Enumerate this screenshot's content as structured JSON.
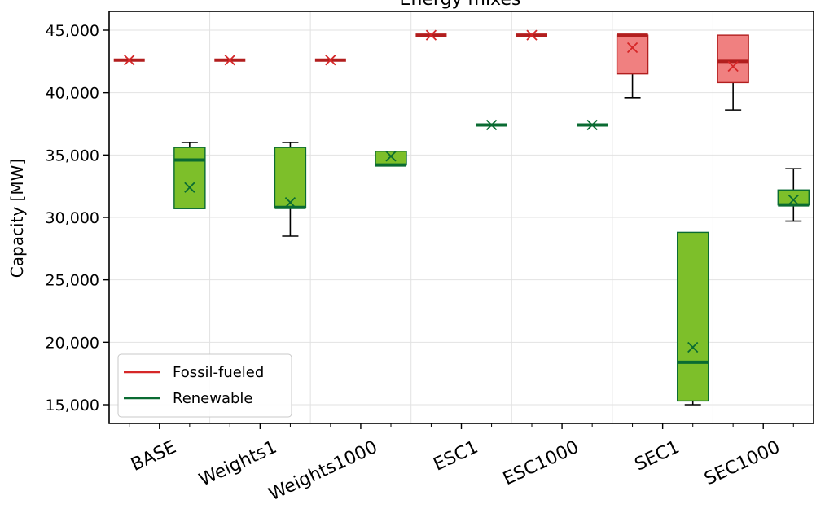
{
  "chart_data": {
    "type": "box",
    "title": "Energy mixes",
    "xlabel": "",
    "ylabel": "Capacity [MW]",
    "ylim": [
      13500,
      46500
    ],
    "yticks": [
      15000,
      20000,
      25000,
      30000,
      35000,
      40000,
      45000
    ],
    "ytick_labels": [
      "15,000",
      "20,000",
      "25,000",
      "30,000",
      "35,000",
      "40,000",
      "45,000"
    ],
    "categories": [
      "BASE",
      "Weights1",
      "Weights1000",
      "ESC1",
      "ESC1000",
      "SEC1",
      "SEC1000"
    ],
    "grid": true,
    "legend": {
      "position": "bottom-left",
      "entries": [
        {
          "label": "Fossil-fueled",
          "color": "#d62728"
        },
        {
          "label": "Renewable",
          "color": "#0a6b32"
        }
      ]
    },
    "series": [
      {
        "name": "Fossil-fueled",
        "box_fill": "#f08080",
        "median_color": "#b21e1e",
        "mean_color": "#d62728",
        "boxes": [
          {
            "whisker_low": 42600,
            "q1": 42600,
            "median": 42600,
            "q3": 42600,
            "whisker_high": 42600,
            "mean": 42600
          },
          {
            "whisker_low": 42600,
            "q1": 42600,
            "median": 42600,
            "q3": 42600,
            "whisker_high": 42600,
            "mean": 42600
          },
          {
            "whisker_low": 42600,
            "q1": 42600,
            "median": 42600,
            "q3": 42600,
            "whisker_high": 42600,
            "mean": 42600
          },
          {
            "whisker_low": 44600,
            "q1": 44600,
            "median": 44600,
            "q3": 44600,
            "whisker_high": 44600,
            "mean": 44600
          },
          {
            "whisker_low": 44600,
            "q1": 44600,
            "median": 44600,
            "q3": 44600,
            "whisker_high": 44600,
            "mean": 44600
          },
          {
            "whisker_low": 39600,
            "q1": 41500,
            "median": 44600,
            "q3": 44600,
            "whisker_high": 44600,
            "mean": 43600
          },
          {
            "whisker_low": 38600,
            "q1": 40800,
            "median": 42500,
            "q3": 44600,
            "whisker_high": 44600,
            "mean": 42100
          }
        ]
      },
      {
        "name": "Renewable",
        "box_fill": "#7dbf2a",
        "median_color": "#0a6b32",
        "mean_color": "#0a6b32",
        "boxes": [
          {
            "whisker_low": 30700,
            "q1": 30700,
            "median": 34600,
            "q3": 35600,
            "whisker_high": 36000,
            "mean": 32400
          },
          {
            "whisker_low": 28500,
            "q1": 30800,
            "median": 30800,
            "q3": 35600,
            "whisker_high": 36000,
            "mean": 31200
          },
          {
            "whisker_low": 34200,
            "q1": 34200,
            "median": 34200,
            "q3": 35300,
            "whisker_high": 35300,
            "mean": 34900
          },
          {
            "whisker_low": 37400,
            "q1": 37400,
            "median": 37400,
            "q3": 37400,
            "whisker_high": 37400,
            "mean": 37400
          },
          {
            "whisker_low": 37400,
            "q1": 37400,
            "median": 37400,
            "q3": 37400,
            "whisker_high": 37400,
            "mean": 37400
          },
          {
            "whisker_low": 15000,
            "q1": 15300,
            "median": 18400,
            "q3": 28800,
            "whisker_high": 28800,
            "mean": 19600
          },
          {
            "whisker_low": 29700,
            "q1": 31000,
            "median": 31000,
            "q3": 32200,
            "whisker_high": 33900,
            "mean": 31400
          }
        ]
      }
    ]
  }
}
